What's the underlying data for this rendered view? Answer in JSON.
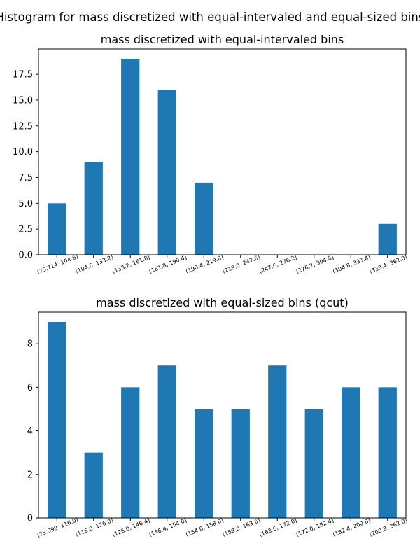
{
  "figure": {
    "suptitle": "Histogram for mass discretized with equal-intervaled and equal-sized bins"
  },
  "colors": {
    "bar": "#1f77b4"
  },
  "chart_data": [
    {
      "type": "bar",
      "title": "mass discretized with equal-intervaled bins",
      "xlabel": "",
      "ylabel": "",
      "categories": [
        "(75.714, 104.6]",
        "(104.6, 133.2]",
        "(133.2, 161.8]",
        "(161.8, 190.4]",
        "(190.4, 219.0]",
        "(219.0, 247.6]",
        "(247.6, 276.2]",
        "(276.2, 304.8]",
        "(304.8, 333.4]",
        "(333.4, 362.0]"
      ],
      "values": [
        5,
        9,
        19,
        16,
        7,
        0,
        0,
        0,
        0,
        3
      ],
      "ylim": [
        0,
        19.95
      ],
      "yticks": [
        "0.0",
        "2.5",
        "5.0",
        "7.5",
        "10.0",
        "12.5",
        "15.0",
        "17.5"
      ],
      "ytick_values": [
        0,
        2.5,
        5,
        7.5,
        10,
        12.5,
        15,
        17.5
      ],
      "grid": false,
      "legend": "none"
    },
    {
      "type": "bar",
      "title": "mass discretized with equal-sized bins (qcut)",
      "xlabel": "",
      "ylabel": "",
      "categories": [
        "(75.999, 116.0]",
        "(116.0, 126.0]",
        "(126.0, 146.4]",
        "(146.4, 154.0]",
        "(154.0, 158.0]",
        "(158.0, 163.6]",
        "(163.6, 172.0]",
        "(172.0, 182.4]",
        "(182.4, 200.8]",
        "(200.8, 362.0]"
      ],
      "values": [
        9,
        3,
        6,
        7,
        5,
        5,
        7,
        5,
        6,
        6
      ],
      "ylim": [
        0,
        9.45
      ],
      "yticks": [
        "0",
        "2",
        "4",
        "6",
        "8"
      ],
      "ytick_values": [
        0,
        2,
        4,
        6,
        8
      ],
      "grid": false,
      "legend": "none"
    }
  ]
}
